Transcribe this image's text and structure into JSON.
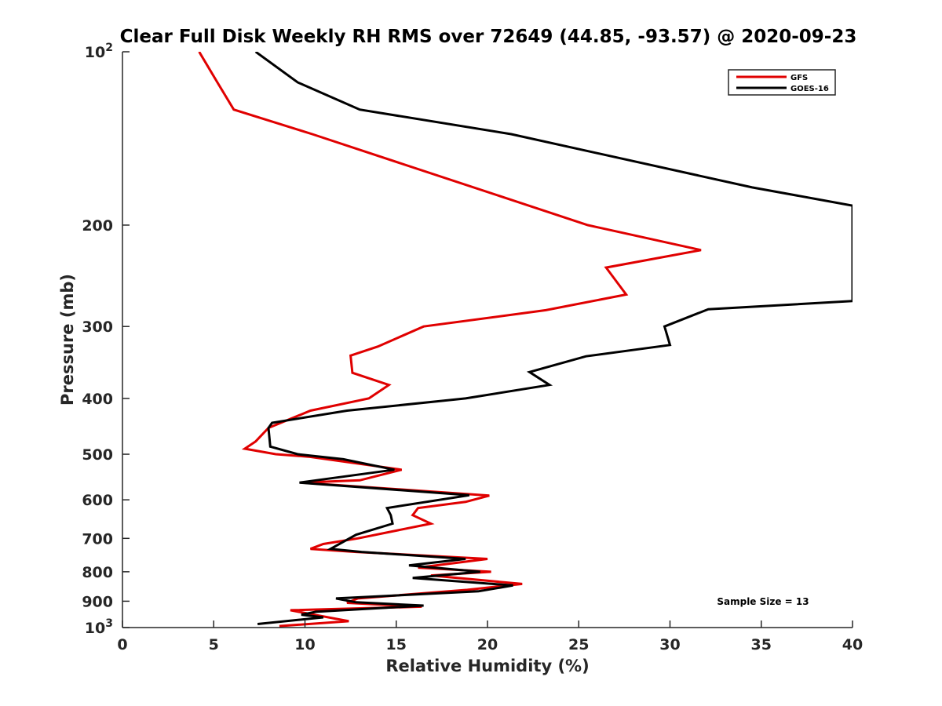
{
  "chart_data": {
    "type": "line",
    "title": "Clear Full Disk Weekly RH RMS over 72649 (44.85, -93.57) @ 2020-09-23",
    "xlabel": "Relative Humidity (%)",
    "ylabel": "Pressure (mb)",
    "xlim": [
      0,
      40
    ],
    "ylim": [
      100,
      1000
    ],
    "y_scale": "log",
    "y_reversed": true,
    "x_ticks": [
      0,
      5,
      10,
      15,
      20,
      25,
      30,
      35,
      40
    ],
    "x_tick_labels": [
      "0",
      "5",
      "10",
      "15",
      "20",
      "25",
      "30",
      "35",
      "40"
    ],
    "y_ticks": [
      100,
      200,
      300,
      400,
      500,
      600,
      700,
      800,
      900,
      1000
    ],
    "y_tick_labels": [
      {
        "base": "10",
        "exp": "2"
      },
      {
        "base": "200",
        "exp": ""
      },
      {
        "base": "300",
        "exp": ""
      },
      {
        "base": "400",
        "exp": ""
      },
      {
        "base": "500",
        "exp": ""
      },
      {
        "base": "600",
        "exp": ""
      },
      {
        "base": "700",
        "exp": ""
      },
      {
        "base": "800",
        "exp": ""
      },
      {
        "base": "900",
        "exp": ""
      },
      {
        "base": "10",
        "exp": "3"
      }
    ],
    "grid": false,
    "legend_position": "top-right",
    "annotation": "Sample Size = 13",
    "series": [
      {
        "name": "GFS",
        "color": "#e00000",
        "points": [
          [
            4.2,
            100
          ],
          [
            5.2,
            113
          ],
          [
            6.1,
            126
          ],
          [
            10.4,
            139
          ],
          [
            25.5,
            200
          ],
          [
            31.7,
            221
          ],
          [
            26.5,
            237
          ],
          [
            27.6,
            264
          ],
          [
            23.2,
            281
          ],
          [
            16.5,
            300
          ],
          [
            14.0,
            325
          ],
          [
            12.5,
            337
          ],
          [
            12.6,
            361
          ],
          [
            14.6,
            379
          ],
          [
            13.5,
            400
          ],
          [
            10.3,
            420
          ],
          [
            8.0,
            450
          ],
          [
            7.3,
            475
          ],
          [
            6.7,
            489
          ],
          [
            8.4,
            500
          ],
          [
            10.2,
            505
          ],
          [
            15.3,
            532
          ],
          [
            13.0,
            555
          ],
          [
            9.8,
            560
          ],
          [
            20.1,
            590
          ],
          [
            18.8,
            605
          ],
          [
            16.2,
            620
          ],
          [
            15.9,
            638
          ],
          [
            16.9,
            660
          ],
          [
            12.9,
            700
          ],
          [
            11.0,
            716
          ],
          [
            10.3,
            730
          ],
          [
            12.8,
            739
          ],
          [
            20.0,
            760
          ],
          [
            16.2,
            787
          ],
          [
            20.2,
            800
          ],
          [
            16.9,
            812
          ],
          [
            21.9,
            840
          ],
          [
            18.9,
            860
          ],
          [
            12.9,
            890
          ],
          [
            12.3,
            906
          ],
          [
            16.4,
            920
          ],
          [
            9.2,
            933
          ],
          [
            12.4,
            975
          ],
          [
            8.6,
            994
          ]
        ]
      },
      {
        "name": "GOES-16",
        "color": "#000000",
        "points": [
          [
            7.3,
            100
          ],
          [
            9.6,
            113
          ],
          [
            13.0,
            126
          ],
          [
            21.3,
            139
          ],
          [
            34.5,
            172
          ],
          [
            40.0,
            185
          ],
          [
            40.0,
            271
          ],
          [
            32.1,
            280
          ],
          [
            29.7,
            300
          ],
          [
            30.0,
            323
          ],
          [
            25.4,
            338
          ],
          [
            22.3,
            360
          ],
          [
            23.4,
            379
          ],
          [
            18.8,
            400
          ],
          [
            12.3,
            420
          ],
          [
            8.2,
            441
          ],
          [
            8.0,
            450
          ],
          [
            8.1,
            485
          ],
          [
            9.6,
            500
          ],
          [
            12.1,
            510
          ],
          [
            14.9,
            532
          ],
          [
            9.7,
            560
          ],
          [
            19.0,
            589
          ],
          [
            14.5,
            620
          ],
          [
            14.7,
            638
          ],
          [
            14.8,
            660
          ],
          [
            12.8,
            690
          ],
          [
            11.4,
            730
          ],
          [
            13.1,
            739
          ],
          [
            18.8,
            760
          ],
          [
            15.7,
            780
          ],
          [
            19.6,
            800
          ],
          [
            15.9,
            820
          ],
          [
            21.4,
            845
          ],
          [
            19.5,
            865
          ],
          [
            11.7,
            890
          ],
          [
            12.8,
            904
          ],
          [
            16.5,
            916
          ],
          [
            10.6,
            939
          ],
          [
            9.8,
            950
          ],
          [
            11.0,
            960
          ],
          [
            7.4,
            986
          ]
        ]
      }
    ]
  }
}
